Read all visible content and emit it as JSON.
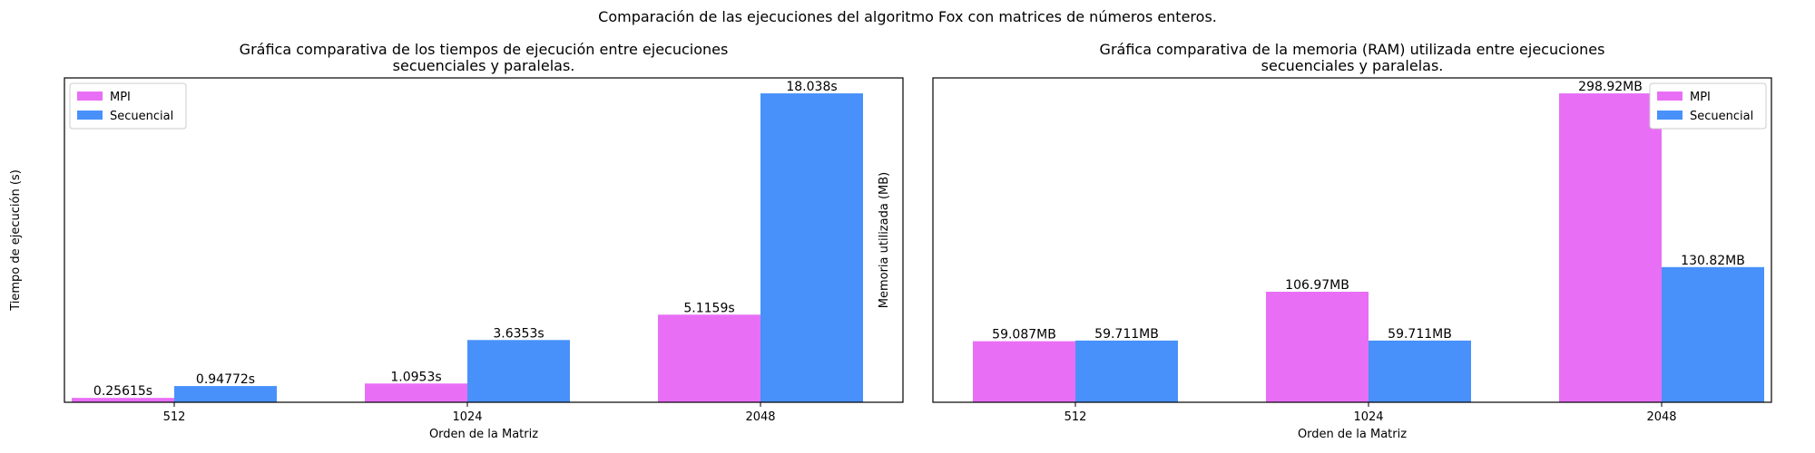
{
  "suptitle": "Comparación de las ejecuciones del algoritmo Fox con matrices de números enteros.",
  "colors": {
    "MPI": "#e86ff5",
    "Secuencial": "#4891fb"
  },
  "chart_data": [
    {
      "type": "bar",
      "title_lines": [
        "Gráfica comparativa de los tiempos de ejecución entre ejecuciones",
        "secuenciales y paralelas."
      ],
      "xlabel": "Orden de la Matriz",
      "ylabel": "Tiempo de ejecución (s)",
      "categories": [
        "512",
        "1024",
        "2048"
      ],
      "ylim": [
        0,
        18.94
      ],
      "y_ticks_visible": false,
      "grid": false,
      "legend_position": "upper-left",
      "series": [
        {
          "name": "MPI",
          "values": [
            0.25615,
            1.0953,
            5.1159
          ],
          "labels": [
            "0.25615s",
            "1.0953s",
            "5.1159s"
          ]
        },
        {
          "name": "Secuencial",
          "values": [
            0.94772,
            3.6353,
            18.038
          ],
          "labels": [
            "0.94772s",
            "3.6353s",
            "18.038s"
          ]
        }
      ]
    },
    {
      "type": "bar",
      "title_lines": [
        "Gráfica comparativa de la memoria (RAM) utilizada entre ejecuciones",
        "secuenciales y paralelas."
      ],
      "xlabel": "Orden de la Matriz",
      "ylabel": "Memoria utilizada (MB)",
      "categories": [
        "512",
        "1024",
        "2048"
      ],
      "ylim": [
        0,
        313.87
      ],
      "y_ticks_visible": false,
      "grid": false,
      "legend_position": "upper-right",
      "series": [
        {
          "name": "MPI",
          "values": [
            59.087,
            106.97,
            298.92
          ],
          "labels": [
            "59.087MB",
            "106.97MB",
            "298.92MB"
          ]
        },
        {
          "name": "Secuencial",
          "values": [
            59.711,
            59.711,
            130.82
          ],
          "labels": [
            "59.711MB",
            "59.711MB",
            "130.82MB"
          ]
        }
      ]
    }
  ]
}
